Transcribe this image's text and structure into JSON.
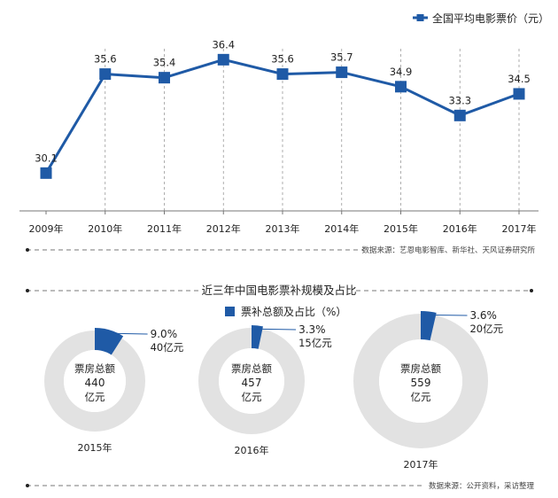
{
  "chart_data": [
    {
      "type": "line",
      "title": "",
      "legend": {
        "label": "全国平均电影票价（元）",
        "placement": "top-right"
      },
      "categories": [
        "2009年",
        "2010年",
        "2011年",
        "2012年",
        "2013年",
        "2014年",
        "2015年",
        "2016年",
        "2017年"
      ],
      "series": [
        {
          "name": "全国平均电影票价（元）",
          "values": [
            30.1,
            35.6,
            35.4,
            36.4,
            35.6,
            35.7,
            34.9,
            33.3,
            34.5
          ],
          "value_labels": [
            "30.1",
            "35.6",
            "35.4",
            "36.4",
            "35.6",
            "35.7",
            "34.9",
            "33.3",
            "34.5"
          ]
        }
      ],
      "ylim": [
        28,
        37.5
      ],
      "grid": "vertical-dashed",
      "source": "数据来源：艺恩电影智库、新华社、天风证券研究所"
    },
    {
      "type": "pie",
      "title": "近三年中国电影票补规模及占比",
      "legend": {
        "label": "票补总额及占比（%）"
      },
      "items": [
        {
          "year": "2015年",
          "center_label": "票房总额",
          "total": "440",
          "unit": "亿元",
          "share": 9.0,
          "share_label": "9.0%",
          "subsidy_label": "40亿元"
        },
        {
          "year": "2016年",
          "center_label": "票房总额",
          "total": "457",
          "unit": "亿元",
          "share": 3.3,
          "share_label": "3.3%",
          "subsidy_label": "15亿元"
        },
        {
          "year": "2017年",
          "center_label": "票房总额",
          "total": "559",
          "unit": "亿元",
          "share": 3.6,
          "share_label": "3.6%",
          "subsidy_label": "20亿元"
        }
      ],
      "source": "数据来源：公开资料，采访整理"
    }
  ],
  "colors": {
    "accent": "#1f5aa6",
    "ring": "#e2e2e2",
    "grid": "#999999",
    "text": "#222222",
    "muted": "#555555"
  }
}
